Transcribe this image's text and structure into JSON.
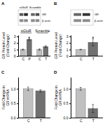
{
  "chart_data": [
    {
      "type": "heatmap",
      "title": "A",
      "rows": [
        "GR",
        "β-actin"
      ],
      "groups": [
        {
          "name": "siGluR",
          "size": 2
        },
        {
          "name": "Scramble",
          "size": 2
        }
      ],
      "cells": [
        [
          0.35,
          0.15,
          0.4,
          0.3
        ],
        [
          0.55,
          0.55,
          0.55,
          0.55
        ]
      ]
    },
    {
      "type": "bar",
      "categories": [
        "C",
        "P",
        "C",
        "T"
      ],
      "values": [
        1.0,
        2.55,
        1.0,
        1.45
      ],
      "errors": [
        0.07,
        0.12,
        0.1,
        0.14
      ],
      "colors": [
        "#c0c0c0",
        "#707070",
        "#c0c0c0",
        "#707070"
      ],
      "ylabel": "GR Protein Level\n(Fold Change)",
      "ylim": [
        0,
        3.2
      ],
      "yticks": [
        0,
        1,
        2,
        3
      ],
      "groups": [
        {
          "name": "siGluR",
          "size": 2
        },
        {
          "name": "Scramble",
          "size": 2
        }
      ],
      "annotations": [
        {
          "text": "*",
          "bar": 1
        }
      ]
    },
    {
      "type": "heatmap",
      "title": "B",
      "rows": [
        "GR",
        "β-actin"
      ],
      "cells": [
        [
          0.4,
          0.2
        ],
        [
          0.55,
          0.55
        ]
      ]
    },
    {
      "type": "bar",
      "categories": [
        "C",
        "T"
      ],
      "values": [
        1.0,
        2.1
      ],
      "errors": [
        0.05,
        0.55
      ],
      "colors": [
        "#c0c0c0",
        "#707070"
      ],
      "ylabel": "GR Protein Level\n(Fold Change)",
      "ylim": [
        0,
        3.2
      ],
      "yticks": [
        0,
        1,
        2,
        3
      ],
      "annotations": [
        {
          "text": "*",
          "bar": 1
        }
      ]
    },
    {
      "type": "bar",
      "title": "C",
      "categories": [
        "C",
        "T"
      ],
      "values": [
        1.0,
        0.93
      ],
      "errors": [
        0.06,
        0.04
      ],
      "colors": [
        "#c0c0c0",
        "#707070"
      ],
      "ylabel": "Fold Change in\nGR mRNA",
      "ylim": [
        0,
        1.4
      ],
      "yticks": [
        {
          "value": 0.0,
          "label": "0.0"
        },
        0.5,
        {
          "value": 1.0,
          "label": "1.0"
        }
      ]
    },
    {
      "type": "bar",
      "title": "D",
      "categories": [
        "C",
        "T"
      ],
      "values": [
        1.0,
        0.32
      ],
      "errors": [
        0.05,
        0.14
      ],
      "colors": [
        "#c0c0c0",
        "#707070"
      ],
      "ylabel": "Fold Change in\nGR mRNA",
      "ylim": [
        0,
        1.4
      ],
      "yticks": [
        {
          "value": 0.0,
          "label": "0.0"
        },
        0.5,
        {
          "value": 1.0,
          "label": "1.0"
        }
      ]
    }
  ]
}
